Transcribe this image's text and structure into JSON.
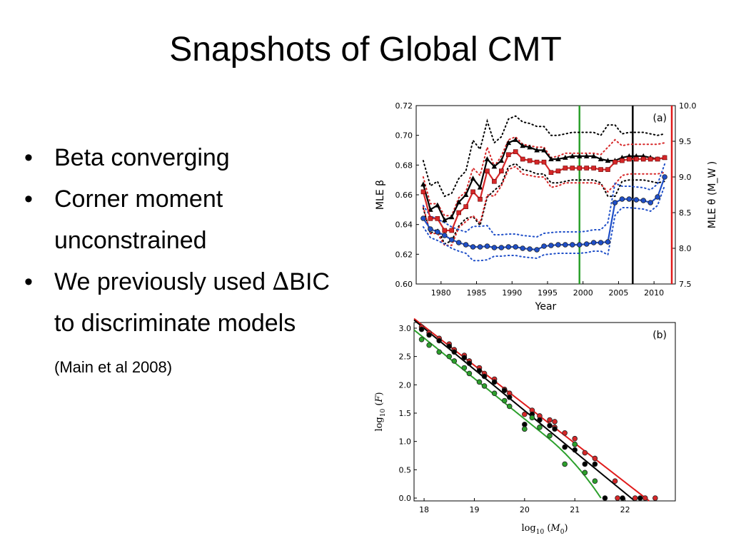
{
  "slide": {
    "title": "Snapshots of Global CMT",
    "bullets": [
      {
        "text": "Beta converging"
      },
      {
        "text": "Corner moment unconstrained"
      },
      {
        "delta": "∆",
        "text": "BIC to discriminate models",
        "prefix": "We previously used ",
        "cite": "(Main et al 2008)"
      }
    ]
  },
  "chart_data": [
    {
      "type": "line",
      "panel_label": "(a)",
      "xlabel": "Year",
      "ylabel": "MLE β",
      "ylabel_right": "MLE θ (M_W )",
      "xlim": [
        1976.5,
        2013
      ],
      "ylim": [
        0.6,
        0.72
      ],
      "ylim_right": [
        7.5,
        10.0
      ],
      "x_ticks": [
        1980,
        1985,
        1990,
        1995,
        2000,
        2005,
        2010
      ],
      "y_ticks": [
        0.6,
        0.62,
        0.64,
        0.66,
        0.68,
        0.7,
        0.72
      ],
      "y_ticks_right": [
        7.5,
        8.0,
        8.5,
        9.0,
        9.5,
        10.0
      ],
      "x": [
        1977.5,
        1978.5,
        1979.5,
        1980.5,
        1981.5,
        1982.5,
        1983.5,
        1984.5,
        1985.5,
        1986.5,
        1987.5,
        1988.5,
        1989.5,
        1990.5,
        1991.5,
        1992.5,
        1993.5,
        1994.5,
        1995.5,
        1996.5,
        1997.5,
        1998.5,
        1999.5,
        2000.5,
        2001.5,
        2002.5,
        2003.5,
        2004.5,
        2005.5,
        2006.5,
        2007.5,
        2008.5,
        2009.5,
        2010.5,
        2011.5
      ],
      "series": [
        {
          "axis": "left",
          "color": "#000000",
          "marker": "triangle",
          "values": [
            0.667,
            0.65,
            0.653,
            0.643,
            0.645,
            0.655,
            0.66,
            0.671,
            0.665,
            0.684,
            0.679,
            0.683,
            0.695,
            0.697,
            0.693,
            0.692,
            0.69,
            0.69,
            0.684,
            0.684,
            0.685,
            0.686,
            0.686,
            0.686,
            0.686,
            0.684,
            0.683,
            0.683,
            0.685,
            0.686,
            0.686,
            0.686,
            0.685,
            0.684,
            0.685
          ]
        },
        {
          "axis": "left",
          "color": "#d62728",
          "marker": "square",
          "values": [
            0.662,
            0.644,
            0.644,
            0.636,
            0.636,
            0.648,
            0.652,
            0.662,
            0.657,
            0.676,
            0.669,
            0.676,
            0.687,
            0.689,
            0.684,
            0.683,
            0.682,
            0.682,
            0.675,
            0.676,
            0.678,
            0.678,
            0.678,
            0.678,
            0.678,
            0.677,
            0.677,
            0.682,
            0.683,
            0.684,
            0.684,
            0.684,
            0.684,
            0.684,
            0.685
          ]
        },
        {
          "axis": "right",
          "color": "#1f4fc8",
          "marker": "circle",
          "values": [
            8.42,
            8.27,
            8.23,
            8.18,
            8.12,
            8.08,
            8.05,
            8.02,
            8.02,
            8.03,
            8.01,
            8.01,
            8.02,
            8.02,
            8.0,
            7.99,
            7.98,
            8.03,
            8.04,
            8.05,
            8.05,
            8.05,
            8.05,
            8.06,
            8.08,
            8.08,
            8.09,
            8.64,
            8.69,
            8.69,
            8.68,
            8.67,
            8.64,
            8.72,
            9.0
          ]
        }
      ],
      "vlines": [
        {
          "x": 1999.5,
          "color": "#2ca02c"
        },
        {
          "x": 2007.0,
          "color": "#000000"
        },
        {
          "x": 2012.5,
          "color": "#e01b1b"
        }
      ]
    },
    {
      "type": "scatter",
      "panel_label": "(b)",
      "xlabel": "log10 (M0)",
      "ylabel": "log10 (F)",
      "xlim": [
        17.8,
        23.0
      ],
      "ylim": [
        -0.05,
        3.1
      ],
      "x_ticks": [
        18,
        19,
        20,
        21,
        22
      ],
      "y_ticks": [
        0.0,
        0.5,
        1.0,
        1.5,
        2.0,
        2.5,
        3.0
      ],
      "series": [
        {
          "color": "#d62728",
          "points": [
            [
              17.95,
              3.02
            ],
            [
              18.1,
              2.92
            ],
            [
              18.3,
              2.82
            ],
            [
              18.5,
              2.72
            ],
            [
              18.6,
              2.62
            ],
            [
              18.8,
              2.52
            ],
            [
              18.9,
              2.42
            ],
            [
              19.1,
              2.3
            ],
            [
              19.2,
              2.2
            ],
            [
              19.4,
              2.1
            ],
            [
              19.6,
              1.92
            ],
            [
              19.7,
              1.85
            ],
            [
              20.0,
              1.48
            ],
            [
              20.15,
              1.55
            ],
            [
              20.3,
              1.45
            ],
            [
              20.5,
              1.38
            ],
            [
              20.6,
              1.35
            ],
            [
              20.6,
              1.25
            ],
            [
              20.8,
              1.15
            ],
            [
              21.0,
              1.05
            ],
            [
              21.0,
              0.95
            ],
            [
              21.2,
              0.8
            ],
            [
              21.4,
              0.7
            ],
            [
              21.8,
              0.3
            ],
            [
              21.85,
              0.0
            ],
            [
              22.2,
              0.0
            ],
            [
              22.4,
              0.0
            ],
            [
              22.6,
              0.0
            ]
          ]
        },
        {
          "color": "#000000",
          "points": [
            [
              17.95,
              2.98
            ],
            [
              18.1,
              2.88
            ],
            [
              18.3,
              2.78
            ],
            [
              18.5,
              2.68
            ],
            [
              18.6,
              2.58
            ],
            [
              18.8,
              2.48
            ],
            [
              18.9,
              2.38
            ],
            [
              19.1,
              2.25
            ],
            [
              19.2,
              2.15
            ],
            [
              19.4,
              2.05
            ],
            [
              19.6,
              1.9
            ],
            [
              19.7,
              1.78
            ],
            [
              20.0,
              1.3
            ],
            [
              20.0,
              1.22
            ],
            [
              20.15,
              1.48
            ],
            [
              20.3,
              1.38
            ],
            [
              20.5,
              1.28
            ],
            [
              20.6,
              1.22
            ],
            [
              20.8,
              0.9
            ],
            [
              21.0,
              0.85
            ],
            [
              21.2,
              0.6
            ],
            [
              21.4,
              0.6
            ],
            [
              21.6,
              0.0
            ],
            [
              21.95,
              0.0
            ],
            [
              22.3,
              0.0
            ]
          ]
        },
        {
          "color": "#2ca02c",
          "points": [
            [
              17.95,
              2.8
            ],
            [
              18.1,
              2.7
            ],
            [
              18.3,
              2.58
            ],
            [
              18.5,
              2.5
            ],
            [
              18.6,
              2.42
            ],
            [
              18.8,
              2.3
            ],
            [
              18.9,
              2.2
            ],
            [
              19.1,
              2.05
            ],
            [
              19.2,
              1.98
            ],
            [
              19.4,
              1.85
            ],
            [
              19.6,
              1.72
            ],
            [
              19.7,
              1.62
            ],
            [
              20.0,
              1.22
            ],
            [
              20.15,
              1.42
            ],
            [
              20.3,
              1.25
            ],
            [
              20.5,
              1.1
            ],
            [
              20.8,
              0.6
            ],
            [
              21.0,
              0.95
            ],
            [
              21.2,
              0.45
            ],
            [
              21.4,
              0.3
            ]
          ]
        }
      ],
      "fits": [
        {
          "color": "#e01b1b"
        },
        {
          "color": "#000000"
        },
        {
          "color": "#2ca02c",
          "tapered": true
        }
      ]
    }
  ]
}
